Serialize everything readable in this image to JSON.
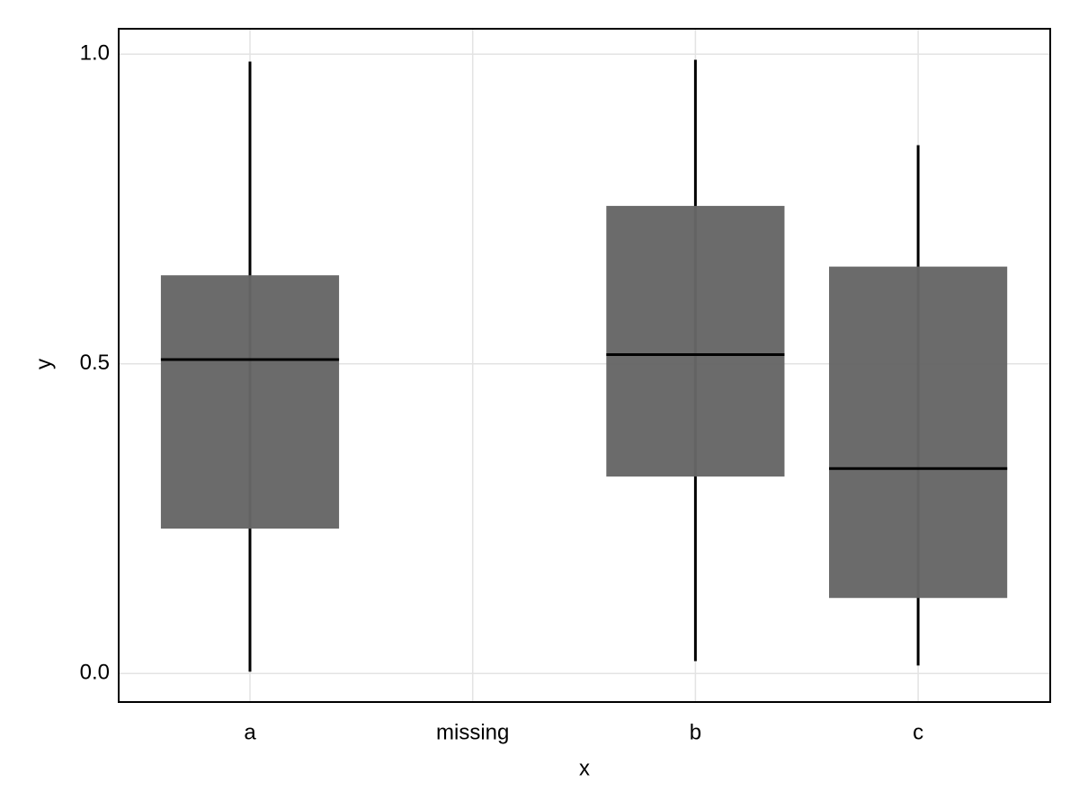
{
  "chart_data": {
    "type": "boxplot",
    "x_label": "x",
    "y_label": "y",
    "categories": [
      "a",
      "missing",
      "b",
      "c"
    ],
    "min": [
      0.003,
      null,
      0.02,
      0.013
    ],
    "q1": [
      0.234,
      null,
      0.318,
      0.122
    ],
    "median": [
      0.507,
      null,
      0.515,
      0.331
    ],
    "q3": [
      0.643,
      null,
      0.755,
      0.657
    ],
    "max": [
      0.988,
      null,
      0.991,
      0.853
    ],
    "color": "#666666",
    "ylim": [
      -0.046,
      1.041
    ],
    "yticks": [
      {
        "value": 0,
        "label": "0.0"
      },
      {
        "value": 0.5,
        "label": "0.5"
      },
      {
        "value": 1,
        "label": "1.0"
      }
    ],
    "grid": true
  }
}
